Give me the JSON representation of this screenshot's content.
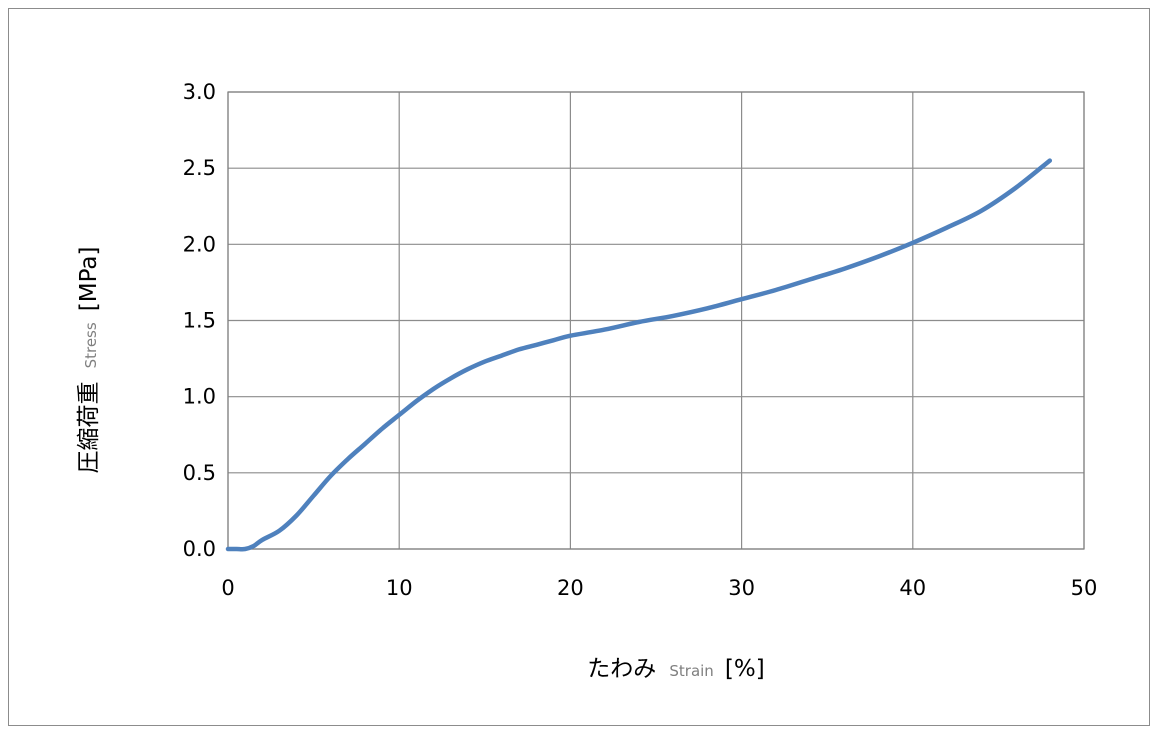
{
  "chart_data": {
    "type": "line",
    "title": "",
    "xlabel": {
      "main": "たわみ",
      "sub": "Strain",
      "unit": "[%]"
    },
    "ylabel": {
      "main": "圧縮荷重",
      "sub": "Stress",
      "unit": "[MPa]"
    },
    "xlim": [
      0,
      50
    ],
    "ylim": [
      0,
      3.0
    ],
    "x_ticks": [
      "0",
      "10",
      "20",
      "30",
      "40",
      "50"
    ],
    "y_ticks": [
      "0.0",
      "0.5",
      "1.0",
      "1.5",
      "2.0",
      "2.5",
      "3.0"
    ],
    "grid": true,
    "legend": "none",
    "series": [
      {
        "color": "#4f81bd",
        "points": [
          [
            0,
            0.0
          ],
          [
            0.5,
            0.0
          ],
          [
            1.0,
            0.0
          ],
          [
            1.5,
            0.02
          ],
          [
            2.0,
            0.06
          ],
          [
            3.0,
            0.12
          ],
          [
            4.0,
            0.22
          ],
          [
            5.0,
            0.35
          ],
          [
            6.0,
            0.48
          ],
          [
            7.0,
            0.59
          ],
          [
            8.0,
            0.69
          ],
          [
            9.0,
            0.79
          ],
          [
            10.0,
            0.88
          ],
          [
            11.0,
            0.97
          ],
          [
            12.0,
            1.05
          ],
          [
            13.0,
            1.12
          ],
          [
            14.0,
            1.18
          ],
          [
            15.0,
            1.23
          ],
          [
            16.0,
            1.27
          ],
          [
            17.0,
            1.31
          ],
          [
            18.0,
            1.34
          ],
          [
            19.0,
            1.37
          ],
          [
            20.0,
            1.4
          ],
          [
            22.0,
            1.44
          ],
          [
            24.0,
            1.49
          ],
          [
            26.0,
            1.53
          ],
          [
            28.0,
            1.58
          ],
          [
            30.0,
            1.64
          ],
          [
            32.0,
            1.7
          ],
          [
            34.0,
            1.77
          ],
          [
            36.0,
            1.84
          ],
          [
            38.0,
            1.92
          ],
          [
            40.0,
            2.01
          ],
          [
            42.0,
            2.11
          ],
          [
            44.0,
            2.22
          ],
          [
            46.0,
            2.37
          ],
          [
            48.0,
            2.55
          ]
        ]
      }
    ]
  }
}
